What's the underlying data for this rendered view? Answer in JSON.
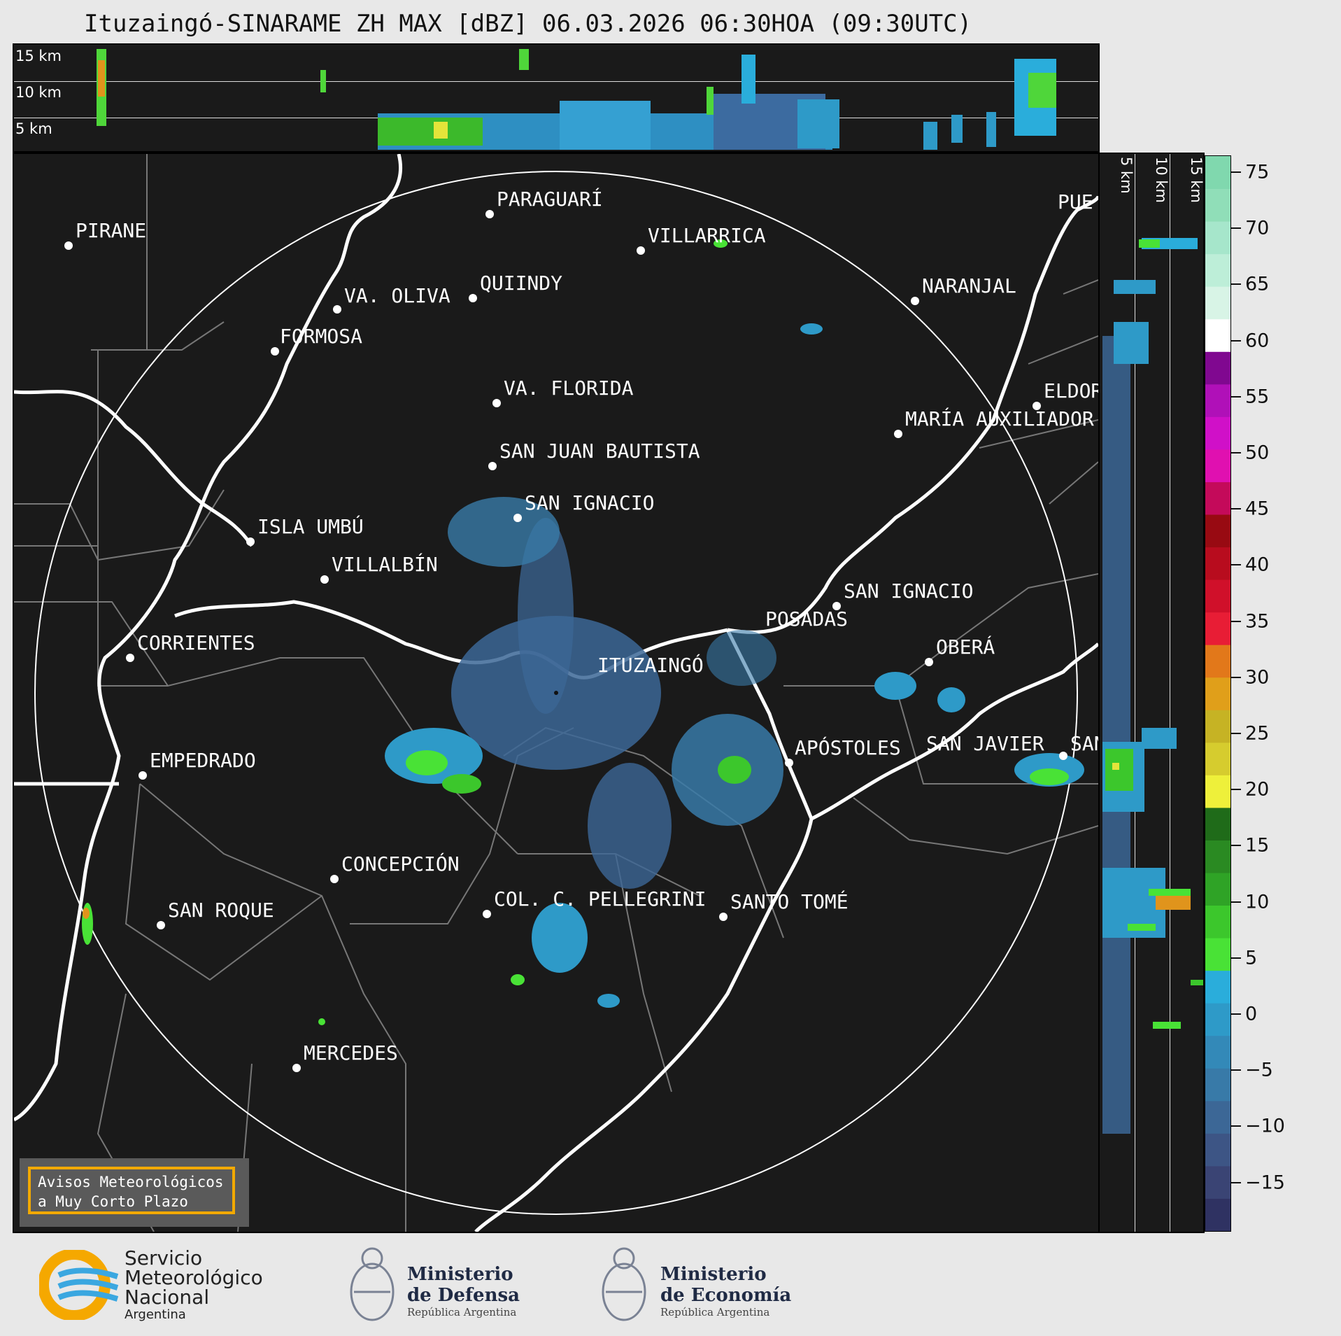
{
  "title": "Ituzaingó-SINARAME ZH MAX [dBZ] 06.03.2026 06:30HOA (09:30UTC)",
  "top_panel": {
    "height_labels": [
      "15 km",
      "10 km",
      "5 km"
    ]
  },
  "side_panel": {
    "height_labels": [
      "5 km",
      "10 km",
      "15 km"
    ]
  },
  "colorbar": {
    "ticks": [
      "75",
      "70",
      "65",
      "60",
      "55",
      "50",
      "45",
      "40",
      "35",
      "30",
      "25",
      "20",
      "15",
      "10",
      "5",
      "0",
      "−5",
      "−10",
      "−15"
    ],
    "colors": [
      "#2f3262",
      "#3a4474",
      "#3d5585",
      "#3c6796",
      "#387aa8",
      "#3389b8",
      "#2e9ac8",
      "#2aaddb",
      "#49e236",
      "#3cc72c",
      "#2fa326",
      "#2a8a22",
      "#1f6b19",
      "#eef03a",
      "#d6cc2e",
      "#c6b324",
      "#e09f1a",
      "#e2781a",
      "#e81d35",
      "#d0102a",
      "#b80c1e",
      "#980a12",
      "#c40a5a",
      "#e010b0",
      "#d010c8",
      "#b010b8",
      "#800890",
      "#ffffff",
      "#d8f4e6",
      "#bdeed8",
      "#a6e6cb",
      "#90deb8",
      "#80d8ae"
    ],
    "accent": "#f2a900"
  },
  "cities": [
    {
      "name": "PARAGUARÍ"
    },
    {
      "name": "VILLARRICA"
    },
    {
      "name": "PIRANE"
    },
    {
      "name": "QUIINDY"
    },
    {
      "name": "VA. OLIVA"
    },
    {
      "name": "NARANJAL"
    },
    {
      "name": "FORMOSA"
    },
    {
      "name": "VA. FLORIDA"
    },
    {
      "name": "ELDOR"
    },
    {
      "name": "MARÍA AUXILIADOR"
    },
    {
      "name": "SAN JUAN BAUTISTA"
    },
    {
      "name": "SAN IGNACIO"
    },
    {
      "name": "ISLA UMBÚ"
    },
    {
      "name": "VILLALBÍN"
    },
    {
      "name": "SAN IGNACIO"
    },
    {
      "name": "POSADAS"
    },
    {
      "name": "CORRIENTES"
    },
    {
      "name": "ITUZAINGÓ"
    },
    {
      "name": "OBERÁ"
    },
    {
      "name": "APÓSTOLES"
    },
    {
      "name": "SAN JAVIER"
    },
    {
      "name": "SAN"
    },
    {
      "name": "EMPEDRADO"
    },
    {
      "name": "CONCEPCIÓN"
    },
    {
      "name": "COL. C. PELLEGRINI"
    },
    {
      "name": "SANTO TOMÉ"
    },
    {
      "name": "SAN ROQUE"
    },
    {
      "name": "MERCEDES"
    },
    {
      "name": "PUE"
    }
  ],
  "warning_box": {
    "line1": "Avisos Meteorológicos",
    "line2": "a Muy Corto Plazo"
  },
  "logos": {
    "smn": {
      "line1": "Servicio",
      "line2": "Meteorológico",
      "line3": "Nacional",
      "line4": "Argentina"
    },
    "defensa": {
      "line1": "Ministerio",
      "line2": "de Defensa",
      "line3": "República Argentina"
    },
    "economia": {
      "line1": "Ministerio",
      "line2": "de Economía",
      "line3": "República Argentina"
    }
  }
}
